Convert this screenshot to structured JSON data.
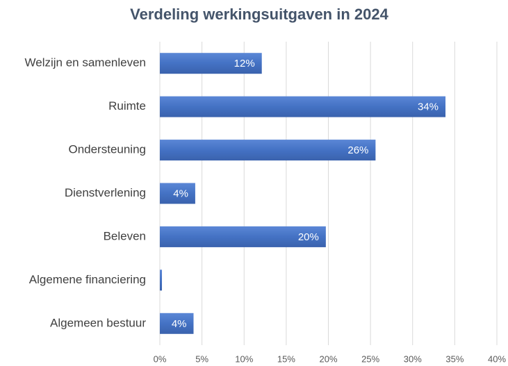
{
  "chart_data": {
    "type": "bar",
    "orientation": "horizontal",
    "title": "Verdeling werkingsuitgaven in 2024",
    "categories": [
      "Welzijn en samenleven",
      "Ruimte",
      "Ondersteuning",
      "Dienstverlening",
      "Beleven",
      "Algemene financiering",
      "Algemeen bestuur"
    ],
    "values": [
      12.1,
      33.9,
      25.6,
      4.2,
      19.7,
      0.25,
      4.0
    ],
    "value_labels": [
      "12%",
      "34%",
      "26%",
      "4%",
      "20%",
      null,
      "4%"
    ],
    "color": "#4472c4",
    "xlim": [
      0,
      40
    ],
    "xticks": [
      {
        "value": 0,
        "label": "0%"
      },
      {
        "value": 5,
        "label": "5%"
      },
      {
        "value": 10,
        "label": "10%"
      },
      {
        "value": 15,
        "label": "15%"
      },
      {
        "value": 20,
        "label": "20%"
      },
      {
        "value": 25,
        "label": "25%"
      },
      {
        "value": 30,
        "label": "30%"
      },
      {
        "value": 35,
        "label": "35%"
      },
      {
        "value": 40,
        "label": "40%"
      }
    ],
    "grid": true
  }
}
